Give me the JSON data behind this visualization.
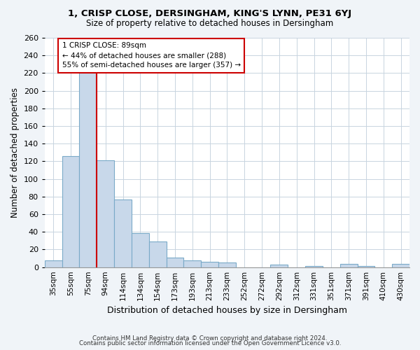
{
  "title": "1, CRISP CLOSE, DERSINGHAM, KING'S LYNN, PE31 6YJ",
  "subtitle": "Size of property relative to detached houses in Dersingham",
  "xlabel": "Distribution of detached houses by size in Dersingham",
  "ylabel": "Number of detached properties",
  "bar_labels": [
    "35sqm",
    "55sqm",
    "75sqm",
    "94sqm",
    "114sqm",
    "134sqm",
    "154sqm",
    "173sqm",
    "193sqm",
    "213sqm",
    "233sqm",
    "252sqm",
    "272sqm",
    "292sqm",
    "312sqm",
    "331sqm",
    "351sqm",
    "371sqm",
    "391sqm",
    "410sqm",
    "430sqm"
  ],
  "bar_values": [
    8,
    126,
    220,
    121,
    77,
    39,
    29,
    11,
    8,
    6,
    5,
    0,
    0,
    3,
    0,
    1,
    0,
    4,
    1,
    0,
    4
  ],
  "bar_color": "#c8d8ea",
  "bar_edge_color": "#7aaac8",
  "bar_edge_width": 0.8,
  "vline_color": "#cc0000",
  "annotation_title": "1 CRISP CLOSE: 89sqm",
  "annotation_line1": "← 44% of detached houses are smaller (288)",
  "annotation_line2": "55% of semi-detached houses are larger (357) →",
  "annotation_box_color": "#ffffff",
  "annotation_box_edge": "#cc0000",
  "ylim": [
    0,
    260
  ],
  "yticks": [
    0,
    20,
    40,
    60,
    80,
    100,
    120,
    140,
    160,
    180,
    200,
    220,
    240,
    260
  ],
  "grid_color": "#c8d4e0",
  "plot_bg_color": "#ffffff",
  "fig_bg_color": "#f0f4f8",
  "footer_line1": "Contains HM Land Registry data © Crown copyright and database right 2024.",
  "footer_line2": "Contains public sector information licensed under the Open Government Licence v3.0."
}
